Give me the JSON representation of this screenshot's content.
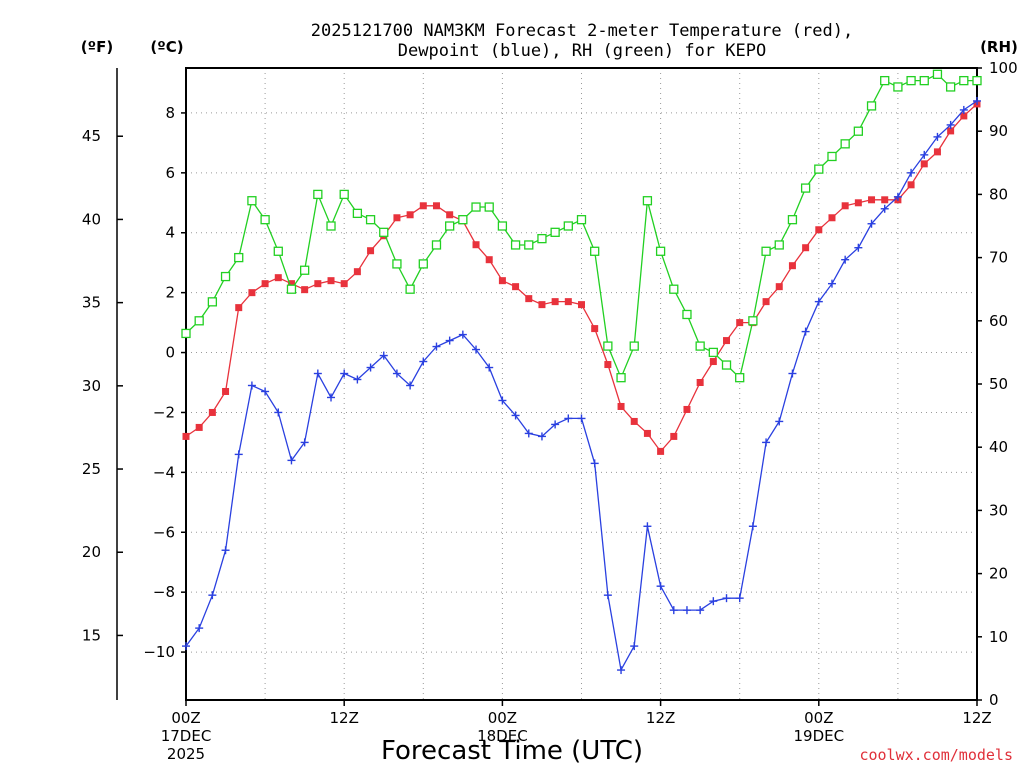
{
  "chart_data": {
    "type": "line",
    "title_line1": "2025121700 NAM3KM Forecast 2-meter Temperature (red),",
    "title_line2": "Dewpoint (blue), RH (green) for KEPO",
    "unit_f": "(ºF)",
    "unit_c": "(ºC)",
    "unit_rh": "(RH)",
    "xlabel": "Forecast Time (UTC)",
    "credit": "coolwx.com/models",
    "x_ticks": [
      {
        "hour": 0,
        "lines": [
          "00Z",
          "17DEC",
          "2025"
        ]
      },
      {
        "hour": 12,
        "lines": [
          "12Z"
        ]
      },
      {
        "hour": 24,
        "lines": [
          "00Z",
          "18DEC"
        ]
      },
      {
        "hour": 36,
        "lines": [
          "12Z"
        ]
      },
      {
        "hour": 48,
        "lines": [
          "00Z",
          "19DEC"
        ]
      },
      {
        "hour": 60,
        "lines": [
          "12Z"
        ]
      }
    ],
    "x_range": [
      0,
      60
    ],
    "c_range": [
      -11.6,
      9.5
    ],
    "c_ticks": [
      8,
      6,
      4,
      2,
      0,
      -2,
      -4,
      -6,
      -8,
      -10
    ],
    "c_tick_labels": [
      "8",
      "6",
      "4",
      "2",
      "0",
      "−2",
      "−4",
      "−6",
      "−8",
      "−10"
    ],
    "f_ticks": [
      45,
      40,
      35,
      30,
      25,
      20,
      15
    ],
    "rh_range": [
      0,
      100
    ],
    "rh_ticks": [
      100,
      90,
      80,
      70,
      60,
      50,
      40,
      30,
      20,
      10,
      0
    ],
    "hours": [
      0,
      1,
      2,
      3,
      4,
      5,
      6,
      7,
      8,
      9,
      10,
      11,
      12,
      13,
      14,
      15,
      16,
      17,
      18,
      19,
      20,
      21,
      22,
      23,
      24,
      25,
      26,
      27,
      28,
      29,
      30,
      31,
      32,
      33,
      34,
      35,
      36,
      37,
      38,
      39,
      40,
      41,
      42,
      43,
      44,
      45,
      46,
      47,
      48,
      49,
      50,
      51,
      52,
      53,
      54,
      55,
      56,
      57,
      58,
      59,
      60
    ],
    "series": [
      {
        "name": "Temperature",
        "unit": "C",
        "color": "#e8323c",
        "marker": "filled-square",
        "values": [
          -2.8,
          -2.5,
          -2.0,
          -1.3,
          1.5,
          2.0,
          2.3,
          2.5,
          2.3,
          2.1,
          2.3,
          2.4,
          2.3,
          2.7,
          3.4,
          3.9,
          4.5,
          4.6,
          4.9,
          4.9,
          4.6,
          4.4,
          3.6,
          3.1,
          2.4,
          2.2,
          1.8,
          1.6,
          1.7,
          1.7,
          1.6,
          0.8,
          -0.4,
          -1.8,
          -2.3,
          -2.7,
          -3.3,
          -2.8,
          -1.9,
          -1.0,
          -0.3,
          0.4,
          1.0,
          1.0,
          1.7,
          2.2,
          2.9,
          3.5,
          4.1,
          4.5,
          4.9,
          5.0,
          5.1,
          5.1,
          5.1,
          5.6,
          6.3,
          6.7,
          7.4,
          7.9,
          8.3
        ]
      },
      {
        "name": "Dewpoint",
        "unit": "C",
        "color": "#2a40e0",
        "marker": "plus",
        "values": [
          -9.8,
          -9.2,
          -8.1,
          -6.6,
          -3.4,
          -1.1,
          -1.3,
          -2.0,
          -3.6,
          -3.0,
          -0.7,
          -1.5,
          -0.7,
          -0.9,
          -0.5,
          -0.1,
          -0.7,
          -1.1,
          -0.3,
          0.2,
          0.4,
          0.6,
          0.1,
          -0.5,
          -1.6,
          -2.1,
          -2.7,
          -2.8,
          -2.4,
          -2.2,
          -2.2,
          -3.7,
          -8.1,
          -10.6,
          -9.8,
          -5.8,
          -7.8,
          -8.6,
          -8.6,
          -8.6,
          -8.3,
          -8.2,
          -8.2,
          -5.8,
          -3.0,
          -2.3,
          -0.7,
          0.7,
          1.7,
          2.3,
          3.1,
          3.5,
          4.3,
          4.8,
          5.2,
          6.0,
          6.6,
          7.2,
          7.6,
          8.1,
          8.4
        ]
      },
      {
        "name": "RH",
        "unit": "%",
        "color": "#22d022",
        "marker": "open-square",
        "values": [
          58,
          60,
          63,
          67,
          70,
          79,
          76,
          71,
          65,
          68,
          80,
          75,
          80,
          77,
          76,
          74,
          69,
          65,
          69,
          72,
          75,
          76,
          78,
          78,
          75,
          72,
          72,
          73,
          74,
          75,
          76,
          71,
          56,
          51,
          56,
          79,
          71,
          65,
          61,
          56,
          55,
          53,
          51,
          60,
          71,
          72,
          76,
          81,
          84,
          86,
          88,
          90,
          94,
          98,
          97,
          98,
          98,
          99,
          97,
          98,
          98
        ]
      }
    ]
  }
}
